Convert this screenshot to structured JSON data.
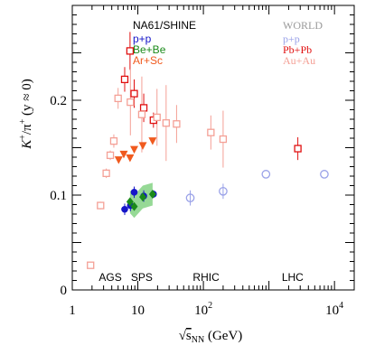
{
  "chart_data": {
    "type": "scatter",
    "xlabel": "√s_NN (GeV)",
    "xlabel_parts": {
      "sqrt": "√",
      "s": "s",
      "sub": "NN",
      "unit": " (GeV)"
    },
    "ylabel": "K+/π+ (y ≈ 0)",
    "ylabel_parts": {
      "k": "K",
      "plus1": "+",
      "slash": "/π",
      "plus2": "+",
      "rest": " (y ≈ 0)"
    },
    "x_scale": "log",
    "xlim": [
      1,
      20000
    ],
    "ylim": [
      0,
      0.3
    ],
    "x_ticks": [
      {
        "value": 1,
        "label": "1"
      },
      {
        "value": 10,
        "label": "10"
      },
      {
        "value": 100,
        "label": "10",
        "exp": "2"
      },
      {
        "value": 10000,
        "label": "10",
        "exp": "4"
      }
    ],
    "y_ticks": [
      {
        "value": 0,
        "label": "0"
      },
      {
        "value": 0.1,
        "label": "0.1"
      },
      {
        "value": 0.2,
        "label": "0.2"
      }
    ],
    "legend_header_left": "NA61/SHINE",
    "legend_header_right": "WORLD",
    "legend": [
      {
        "label": "p+p",
        "color": "#1515c8",
        "column": "left"
      },
      {
        "label": "Be+Be",
        "color": "#1a8a1a",
        "column": "left"
      },
      {
        "label": "Ar+Sc",
        "color": "#f05a1e",
        "column": "left"
      },
      {
        "label": "p+p",
        "color": "#9aa2e8",
        "column": "right"
      },
      {
        "label": "Pb+Pb",
        "color": "#e01010",
        "column": "right"
      },
      {
        "label": "Au+Au",
        "color": "#f4a096",
        "column": "right"
      }
    ],
    "region_labels": [
      {
        "text": "AGS",
        "x": 3.8
      },
      {
        "text": "SPS",
        "x": 11.5
      },
      {
        "text": "RHIC",
        "x": 110
      },
      {
        "text": "LHC",
        "x": 2300
      }
    ],
    "series": [
      {
        "name": "Pb+Pb",
        "marker": "open-square",
        "color": "#e01010",
        "points": [
          {
            "x": 6.3,
            "y": 0.222,
            "err": 0.013
          },
          {
            "x": 7.6,
            "y": 0.252,
            "err": 0.02
          },
          {
            "x": 8.8,
            "y": 0.207,
            "err": 0.015
          },
          {
            "x": 12.3,
            "y": 0.192,
            "err": 0.015
          },
          {
            "x": 17.3,
            "y": 0.179,
            "err": 0.008
          },
          {
            "x": 2760,
            "y": 0.149,
            "err": 0.012
          }
        ]
      },
      {
        "name": "Au+Au",
        "marker": "open-square",
        "color": "#f4a096",
        "points": [
          {
            "x": 2.7,
            "y": 0.089,
            "err": 0.004
          },
          {
            "x": 1.9,
            "y": 0.026,
            "err": 0.002
          },
          {
            "x": 3.3,
            "y": 0.123,
            "err": 0.005
          },
          {
            "x": 3.8,
            "y": 0.142,
            "err": 0.005
          },
          {
            "x": 4.3,
            "y": 0.157,
            "err": 0.007
          },
          {
            "x": 5.0,
            "y": 0.202,
            "err": 0.011
          },
          {
            "x": 7.7,
            "y": 0.198,
            "err": 0.035
          },
          {
            "x": 11.5,
            "y": 0.185,
            "err": 0.04
          },
          {
            "x": 19.6,
            "y": 0.182,
            "err": 0.03
          },
          {
            "x": 27,
            "y": 0.176,
            "err": 0.04
          },
          {
            "x": 39,
            "y": 0.175,
            "err": 0.02
          },
          {
            "x": 130,
            "y": 0.166,
            "err": 0.018
          },
          {
            "x": 200,
            "y": 0.159,
            "err": 0.03
          }
        ]
      },
      {
        "name": "Ar+Sc",
        "marker": "filled-triangle-down",
        "color": "#f05a1e",
        "points": [
          {
            "x": 5.1,
            "y": 0.137
          },
          {
            "x": 6.1,
            "y": 0.143
          },
          {
            "x": 7.6,
            "y": 0.139
          },
          {
            "x": 8.8,
            "y": 0.148
          },
          {
            "x": 11.9,
            "y": 0.152
          },
          {
            "x": 16.8,
            "y": 0.157
          }
        ]
      },
      {
        "name": "WORLD p+p",
        "marker": "open-circle",
        "color": "#9aa2e8",
        "points": [
          {
            "x": 63,
            "y": 0.097,
            "err": 0.008
          },
          {
            "x": 200,
            "y": 0.104,
            "err": 0.008
          },
          {
            "x": 900,
            "y": 0.122
          },
          {
            "x": 7000,
            "y": 0.122
          }
        ]
      },
      {
        "name": "NA61 p+p",
        "marker": "filled-circle",
        "color": "#1515c8",
        "points": [
          {
            "x": 6.3,
            "y": 0.085,
            "err": 0.006
          },
          {
            "x": 7.7,
            "y": 0.089,
            "err": 0.006
          },
          {
            "x": 8.8,
            "y": 0.103,
            "err": 0.006
          },
          {
            "x": 12.3,
            "y": 0.099,
            "err": 0.006
          },
          {
            "x": 17.3,
            "y": 0.101,
            "err": 0.004
          }
        ]
      },
      {
        "name": "Be+Be",
        "marker": "filled-diamond",
        "color": "#1a8a1a",
        "band_color": "#7ccf7c",
        "points": [
          {
            "x": 7.6,
            "y": 0.093
          },
          {
            "x": 8.8,
            "y": 0.088
          },
          {
            "x": 11.9,
            "y": 0.098
          },
          {
            "x": 16.8,
            "y": 0.101
          }
        ]
      }
    ]
  }
}
